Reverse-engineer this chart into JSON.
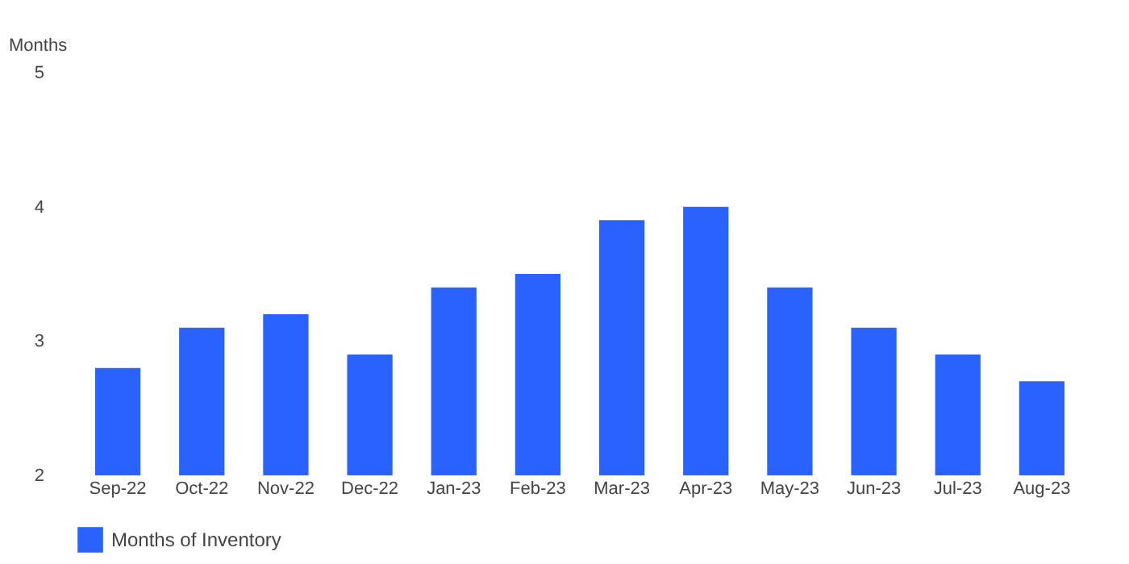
{
  "chart_data": {
    "type": "bar",
    "ylabel": "Months",
    "categories": [
      "Sep-22",
      "Oct-22",
      "Nov-22",
      "Dec-22",
      "Jan-23",
      "Feb-23",
      "Mar-23",
      "Apr-23",
      "May-23",
      "Jun-23",
      "Jul-23",
      "Aug-23"
    ],
    "series": [
      {
        "name": "Months of Inventory",
        "color": "#2962ff",
        "values": [
          2.8,
          3.1,
          3.2,
          2.9,
          3.4,
          3.5,
          3.9,
          4.0,
          3.4,
          3.1,
          2.9,
          2.7
        ]
      }
    ],
    "ylim": [
      2,
      5
    ],
    "yticks": [
      2,
      3,
      4,
      5
    ],
    "grid": false,
    "legend": "bottom"
  }
}
